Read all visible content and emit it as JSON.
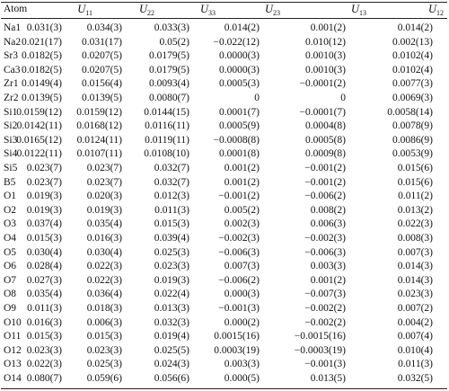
{
  "table": {
    "header": [
      "Atom",
      {
        "symbol": "U",
        "sub": "11"
      },
      {
        "symbol": "U",
        "sub": "22"
      },
      {
        "symbol": "U",
        "sub": "33"
      },
      {
        "symbol": "U",
        "sub": "23"
      },
      {
        "symbol": "U",
        "sub": "13"
      },
      {
        "symbol": "U",
        "sub": "12"
      }
    ],
    "rows": [
      [
        "Na1",
        "0.031(3)",
        "0.034(3)",
        "0.033(3)",
        "0.014(2)",
        "0.001(2)",
        "0.014(2)"
      ],
      [
        "Na2",
        "0.021(17)",
        "0.031(17)",
        "0.05(2)",
        "−0.022(12)",
        "0.010(12)",
        "0.002(13)"
      ],
      [
        "Sr3",
        "0.0182(5)",
        "0.0207(5)",
        "0.0179(5)",
        "0.0000(3)",
        "0.0010(3)",
        "0.0102(4)"
      ],
      [
        "Ca3",
        "0.0182(5)",
        "0.0207(5)",
        "0.0179(5)",
        "0.0000(3)",
        "0.0010(3)",
        "0.0102(4)"
      ],
      [
        "Zr1",
        "0.0149(4)",
        "0.0156(4)",
        "0.0093(4)",
        "0.0005(3)",
        "−0.0001(2)",
        "0.0077(3)"
      ],
      [
        "Zr2",
        "0.0139(5)",
        "0.0139(5)",
        "0.0080(7)",
        "0",
        "0",
        "0.0069(3)"
      ],
      [
        "Si1",
        "0.0159(12)",
        "0.0159(12)",
        "0.0144(15)",
        "0.0001(7)",
        "−0.0001(7)",
        "0.0058(14)"
      ],
      [
        "Si2",
        "0.0142(11)",
        "0.0168(12)",
        "0.0116(11)",
        "0.0005(9)",
        "0.0004(8)",
        "0.0078(9)"
      ],
      [
        "Si3",
        "0.0165(12)",
        "0.0124(11)",
        "0.0119(11)",
        "−0.0008(8)",
        "0.0005(8)",
        "0.0086(9)"
      ],
      [
        "Si4",
        "0.0122(11)",
        "0.0107(11)",
        "0.0108(10)",
        "0.0001(8)",
        "0.0009(8)",
        "0.0053(9)"
      ],
      [
        "Si5",
        "0.023(7)",
        "0.023(7)",
        "0.032(7)",
        "0.001(2)",
        "−0.001(2)",
        "0.015(6)"
      ],
      [
        "B5",
        "0.023(7)",
        "0.023(7)",
        "0.032(7)",
        "0.001(2)",
        "−0.001(2)",
        "0.015(6)"
      ],
      [
        "O1",
        "0.019(3)",
        "0.020(3)",
        "0.012(3)",
        "−0.001(2)",
        "−0.006(2)",
        "0.011(2)"
      ],
      [
        "O2",
        "0.019(3)",
        "0.019(3)",
        "0.011(3)",
        "0.005(2)",
        "0.008(2)",
        "0.013(2)"
      ],
      [
        "O3",
        "0.037(4)",
        "0.035(4)",
        "0.015(3)",
        "0.002(3)",
        "0.006(3)",
        "0.022(3)"
      ],
      [
        "O4",
        "0.015(3)",
        "0.016(3)",
        "0.039(4)",
        "−0.002(3)",
        "−0.002(3)",
        "0.008(3)"
      ],
      [
        "O5",
        "0.030(4)",
        "0.030(4)",
        "0.025(3)",
        "−0.006(3)",
        "−0.006(3)",
        "0.007(3)"
      ],
      [
        "O6",
        "0.028(4)",
        "0.022(3)",
        "0.023(3)",
        "0.007(3)",
        "0.003(3)",
        "0.014(3)"
      ],
      [
        "O7",
        "0.027(3)",
        "0.022(3)",
        "0.019(3)",
        "−0.006(2)",
        "0.001(2)",
        "0.014(3)"
      ],
      [
        "O8",
        "0.035(4)",
        "0.036(4)",
        "0.022(4)",
        "0.000(3)",
        "−0.007(3)",
        "0.023(3)"
      ],
      [
        "O9",
        "0.011(3)",
        "0.018(3)",
        "0.013(3)",
        "−0.001(3)",
        "−0.002(2)",
        "0.007(2)"
      ],
      [
        "O10",
        "0.016(3)",
        "0.006(3)",
        "0.032(3)",
        "0.000(2)",
        "−0.002(2)",
        "0.004(2)"
      ],
      [
        "O11",
        "0.015(3)",
        "0.015(3)",
        "0.019(4)",
        "0.0015(16)",
        "−0.0015(16)",
        "0.007(4)"
      ],
      [
        "O12",
        "0.023(3)",
        "0.023(3)",
        "0.025(5)",
        "0.0003(19)",
        "−0.0003(19)",
        "0.010(4)"
      ],
      [
        "O13",
        "0.022(3)",
        "0.025(3)",
        "0.024(3)",
        "0.003(3)",
        "−0.001(3)",
        "0.011(3)"
      ],
      [
        "O14",
        "0.080(7)",
        "0.059(6)",
        "0.056(6)",
        "0.000(5)",
        "0.013(5)",
        "0.032(5)"
      ]
    ]
  }
}
